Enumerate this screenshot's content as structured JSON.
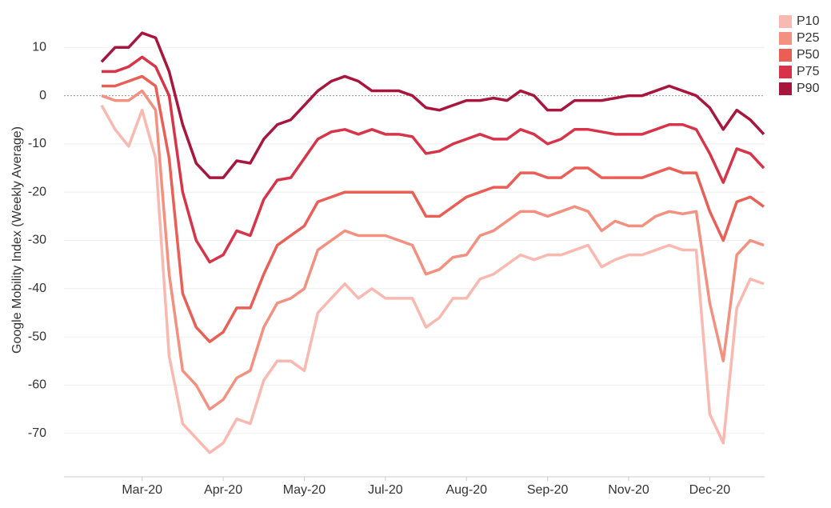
{
  "chart_data": {
    "type": "line",
    "y_label": "Google Mobility Index (Weekly Average)",
    "categories": [
      null,
      null,
      null,
      "Mar-20",
      null,
      null,
      null,
      null,
      null,
      "Apr-20",
      null,
      null,
      null,
      null,
      null,
      "May-20",
      null,
      null,
      null,
      null,
      null,
      "Jul-20",
      null,
      null,
      null,
      null,
      null,
      "Aug-20",
      null,
      null,
      null,
      null,
      null,
      "Sep-20",
      null,
      null,
      null,
      null,
      null,
      "Nov-20",
      null,
      null,
      null,
      null,
      null,
      "Dec-20",
      null,
      null,
      null,
      null
    ],
    "series": [
      {
        "name": "P10",
        "color": "#f9b9b0",
        "values": [
          -2,
          -7,
          -10.5,
          -3,
          -13,
          -54,
          -68,
          -71,
          -74,
          -72,
          -67,
          -68,
          -59,
          -55,
          -55,
          -57,
          -45,
          -42,
          -39,
          -42,
          -40,
          -42,
          -42,
          -42,
          -48,
          -46,
          -42,
          -42,
          -38,
          -37,
          -35,
          -33,
          -34,
          -33,
          -33,
          -32,
          -31,
          -35.5,
          -34,
          -33,
          -33,
          -32,
          -31,
          -32,
          -32,
          -66,
          -72,
          -44,
          -38,
          -39
        ]
      },
      {
        "name": "P25",
        "color": "#f4907f",
        "values": [
          0,
          -1,
          -1,
          1,
          -3,
          -37,
          -57,
          -60,
          -65,
          -63,
          -58.5,
          -57,
          -48,
          -43,
          -42,
          -40,
          -32,
          -30,
          -28,
          -29,
          -29,
          -29,
          -30,
          -31,
          -37,
          -36,
          -33.5,
          -33,
          -29,
          -28,
          -26,
          -24,
          -24,
          -25,
          -24,
          -23,
          -24,
          -28,
          -26,
          -27,
          -27,
          -25,
          -24,
          -24.5,
          -24,
          -43,
          -55,
          -33,
          -30,
          -31
        ]
      },
      {
        "name": "P50",
        "color": "#ea5f55",
        "values": [
          2,
          2,
          3,
          4,
          2,
          -13,
          -41,
          -48,
          -51,
          -49,
          -44,
          -44,
          -37,
          -31,
          -29,
          -27,
          -22,
          -21,
          -20,
          -20,
          -20,
          -20,
          -20,
          -20,
          -25,
          -25,
          -23,
          -21,
          -20,
          -19,
          -19,
          -16,
          -16,
          -17,
          -17,
          -15,
          -15,
          -17,
          -17,
          -17,
          -17,
          -16,
          -15,
          -16,
          -16,
          -24,
          -30,
          -22,
          -21,
          -23
        ]
      },
      {
        "name": "P75",
        "color": "#d7344a",
        "values": [
          5,
          5,
          6,
          8,
          6,
          0,
          -20,
          -30,
          -34.5,
          -33,
          -28,
          -29,
          -21.5,
          -17.5,
          -17,
          -13,
          -9,
          -7.5,
          -7,
          -8,
          -7,
          -8,
          -8,
          -8.5,
          -12,
          -11.5,
          -10,
          -9,
          -8,
          -9,
          -9,
          -7,
          -8,
          -10,
          -9,
          -7,
          -7,
          -7.5,
          -8,
          -8,
          -8,
          -7,
          -6,
          -6,
          -7,
          -12,
          -18,
          -11,
          -12,
          -15
        ]
      },
      {
        "name": "P90",
        "color": "#a8163e",
        "values": [
          7,
          10,
          10,
          13,
          12,
          5,
          -6,
          -14,
          -17,
          -17,
          -13.5,
          -14,
          -9,
          -6,
          -5,
          -2,
          1,
          3,
          4,
          3,
          1,
          1,
          1,
          0,
          -2.5,
          -3,
          -2,
          -1,
          -1,
          -0.5,
          -1,
          1,
          0,
          -3,
          -3,
          -1,
          -1,
          -1,
          -0.5,
          0,
          0,
          1,
          2,
          1,
          0,
          -2.5,
          -7,
          -3,
          -5,
          -8
        ]
      }
    ],
    "ylim": [
      -79,
      19
    ],
    "yticks": [
      10,
      0,
      -10,
      -20,
      -30,
      -40,
      -50,
      -60,
      -70
    ],
    "grid": true,
    "legend": "top-right"
  }
}
